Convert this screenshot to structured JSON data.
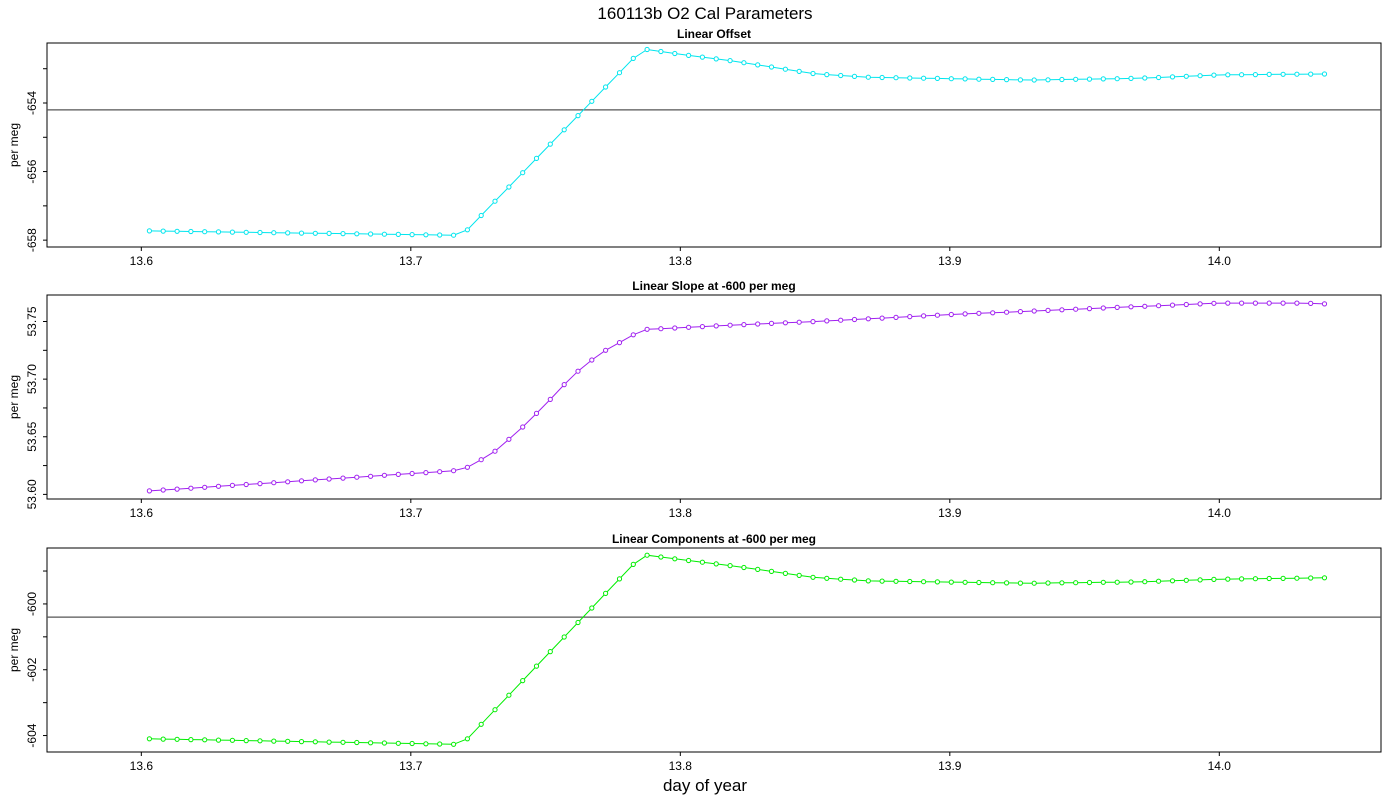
{
  "page": {
    "title": "160113b   O2 Cal Parameters",
    "xlabel": "day of year"
  },
  "chart_data": [
    {
      "type": "line",
      "title": "Linear Offset",
      "xlabel": "",
      "ylabel": "per meg",
      "xlim": [
        13.565,
        14.06
      ],
      "ylim": [
        -658.2,
        -652.25
      ],
      "xticks": [
        "13.6",
        "13.7",
        "13.8",
        "13.9",
        "14.0"
      ],
      "yticks": [
        "-654",
        "-656",
        "-658"
      ],
      "hline": -654.2,
      "color": "#00e5ee",
      "series": [
        {
          "points": [
            [
              13.603,
              -657.73
            ],
            [
              13.719,
              -657.86
            ],
            [
              13.786,
              -652.42
            ],
            [
              13.8,
              -652.58
            ],
            [
              13.82,
              -652.78
            ],
            [
              13.85,
              -653.15
            ],
            [
              13.87,
              -653.25
            ],
            [
              13.93,
              -653.33
            ],
            [
              13.97,
              -653.28
            ],
            [
              14.0,
              -653.18
            ],
            [
              14.043,
              -653.15
            ]
          ]
        }
      ]
    },
    {
      "type": "line",
      "title": "Linear Slope at -600 per meg",
      "xlabel": "",
      "ylabel": "per meg",
      "xlim": [
        13.565,
        14.06
      ],
      "ylim": [
        53.596,
        53.773
      ],
      "xticks": [
        "13.6",
        "13.7",
        "13.8",
        "13.9",
        "14.0"
      ],
      "yticks": [
        "53.60",
        "53.65",
        "53.70",
        "53.75"
      ],
      "hline": null,
      "color": "#a020f0",
      "series": [
        {
          "points": [
            [
              13.603,
              53.603
            ],
            [
              13.719,
              53.621
            ],
            [
              13.73,
              53.635
            ],
            [
              13.74,
              53.655
            ],
            [
              13.75,
              53.678
            ],
            [
              13.76,
              53.703
            ],
            [
              13.77,
              53.722
            ],
            [
              13.786,
              53.743
            ],
            [
              13.82,
              53.747
            ],
            [
              13.85,
              53.75
            ],
            [
              13.9,
              53.756
            ],
            [
              13.95,
              53.761
            ],
            [
              14.0,
              53.766
            ],
            [
              14.03,
              53.766
            ],
            [
              14.043,
              53.765
            ]
          ]
        }
      ]
    },
    {
      "type": "line",
      "title": "Linear Components at -600 per meg",
      "xlabel": "",
      "ylabel": "per meg",
      "xlim": [
        13.565,
        14.06
      ],
      "ylim": [
        -604.5,
        -598.3
      ],
      "xticks": [
        "13.6",
        "13.7",
        "13.8",
        "13.9",
        "14.0"
      ],
      "yticks": [
        "-600",
        "-602",
        "-604"
      ],
      "hline": -600.4,
      "color": "#00ee00",
      "series": [
        {
          "points": [
            [
              13.603,
              -604.1
            ],
            [
              13.719,
              -604.27
            ],
            [
              13.786,
              -598.5
            ],
            [
              13.8,
              -598.65
            ],
            [
              13.82,
              -598.85
            ],
            [
              13.85,
              -599.2
            ],
            [
              13.87,
              -599.3
            ],
            [
              13.93,
              -599.37
            ],
            [
              13.97,
              -599.33
            ],
            [
              14.0,
              -599.25
            ],
            [
              14.043,
              -599.2
            ]
          ]
        }
      ]
    }
  ]
}
